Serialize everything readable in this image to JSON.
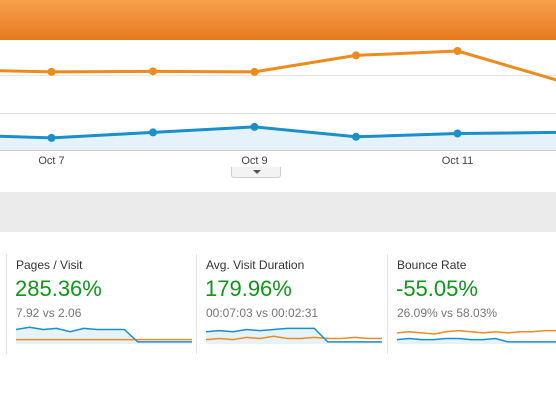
{
  "colors": {
    "orange_series": "#ef8a1d",
    "blue_series": "#1b8fc9",
    "blue_fill": "#e6f2fa",
    "positive_text": "#109618"
  },
  "chart": {
    "x_labels": [
      "Oct 7",
      "Oct 9",
      "Oct 11"
    ]
  },
  "chart_data": {
    "type": "line",
    "categories": [
      "",
      "Oct 7",
      "",
      "Oct 9",
      "",
      "Oct 11",
      ""
    ],
    "series": [
      {
        "color": "#ef8a1d",
        "values": [
          73,
          71,
          71.5,
          71,
          86,
          90,
          63
        ]
      },
      {
        "color": "#1b8fc9",
        "values": [
          14,
          11,
          16,
          21,
          12,
          15,
          16
        ]
      }
    ],
    "ylim": [
      0,
      100
    ],
    "grid": true,
    "legend": "none"
  },
  "metrics": [
    {
      "title": "Pages / Visit",
      "change": "285.36%",
      "comparison": "7.92 vs 2.06",
      "spark_blue": [
        12,
        14,
        12,
        13,
        10,
        13,
        12,
        12,
        12,
        1,
        1,
        1,
        1,
        1
      ],
      "spark_orange": [
        3,
        3,
        3,
        3,
        3,
        3,
        3,
        3,
        3,
        3,
        3,
        3,
        3,
        3
      ]
    },
    {
      "title": "Avg. Visit Duration",
      "change": "179.96%",
      "comparison": "00:07:03 vs 00:02:31",
      "spark_blue": [
        10,
        11,
        10,
        12,
        11,
        12,
        13,
        13,
        13,
        1,
        1,
        1,
        1,
        1
      ],
      "spark_orange": [
        3,
        4,
        3,
        5,
        4,
        6,
        4,
        4,
        5,
        4,
        4,
        5,
        4,
        4
      ]
    },
    {
      "title": "Bounce Rate",
      "change": "-55.05%",
      "comparison": "26.09% vs 58.03%",
      "spark_blue": [
        3,
        4,
        3,
        3,
        4,
        4,
        3,
        3,
        4,
        1,
        1,
        1,
        1,
        1
      ],
      "spark_orange": [
        9,
        10,
        9,
        8,
        10,
        11,
        10,
        9,
        10,
        9,
        10,
        10,
        11,
        11
      ]
    }
  ]
}
